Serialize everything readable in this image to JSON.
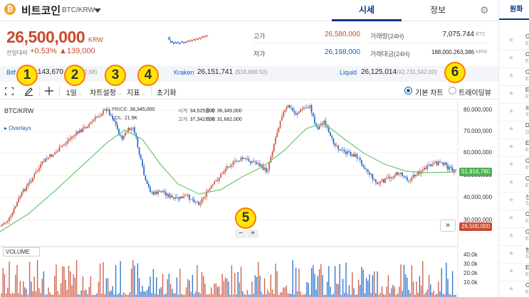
{
  "header": {
    "coin_icon_glyph": "₿",
    "coin_name": "비트코인",
    "pair": "BTC/KRW",
    "tabs": [
      "시세",
      "정보"
    ]
  },
  "summary": {
    "price": "26,500,000",
    "unit": "KRW",
    "change_label": "전일대비",
    "change_pct": "+0.53%",
    "change_abs": "▲139,000",
    "high_label": "고가",
    "high_value": "26,580,000",
    "low_label": "저가",
    "low_value": "26,198,000",
    "volume_label": "거래량(24H)",
    "volume_value": "7,075.744",
    "volume_unit": "BTC",
    "amount_label": "거래대금(24H)",
    "amount_value": "188,000,263,386",
    "amount_unit": "KRW"
  },
  "exchanges": {
    "bitfinex_name": "Bitf",
    "bitfinex_price": "26,143,670",
    "bitfinex_usd": "2.68)",
    "kraken_name": "Kraken",
    "kraken_price": "26,151,741",
    "kraken_usd": "($18,868.50)",
    "liquid_name": "Liquid",
    "liquid_price": "26,125,014",
    "liquid_usd": "(¥2,731,542.00)"
  },
  "toolbar": {
    "fullscreen_icon": "fullscreen-icon",
    "draw_icon": "pencil-icon",
    "crosshair_icon": "crosshair-icon",
    "interval": "1일",
    "chart_settings": "차트설정",
    "indicators": "지표",
    "reset": "초기화",
    "basic_chart": "기본 차트",
    "tradingview": "트레이딩뷰"
  },
  "chart": {
    "symbol": "BTC/KRW",
    "overlays": "Overlays",
    "ohlc": {
      "price_label": "PRICE:",
      "price": "36,345,000",
      "vol_label": "VOL:",
      "vol": "21.9K",
      "open_label": "시가:",
      "open": "34,525,000",
      "high_label": "고가:",
      "high": "37,342,000",
      "close_label": "종가:",
      "close": "36,345,000",
      "low_label": "저가:",
      "low": "31,662,000"
    },
    "price_axis": [
      "80,000,000",
      "70,000,000",
      "60,000,000",
      "50,000,000",
      "40,000,000",
      "30,000,000"
    ],
    "ma_tag": "51,916,780",
    "price_tag": "26,500,000",
    "volume_label": "VOLUME",
    "volume_axis": [
      "40.0k",
      "30.0k",
      "20.0k",
      "10.0k"
    ],
    "zoom_minus": "−",
    "zoom_plus": "+",
    "expand": "»",
    "colors": {
      "up": "#c84a31",
      "down": "#1261c4",
      "ma": "#6cc86c"
    }
  },
  "sidebar": {
    "tab": "원화",
    "rows": [
      {
        "ch": "C",
        "sub": "E"
      },
      {
        "ch": "C",
        "sub": "E"
      },
      {
        "ch": "C",
        "sub": "E"
      },
      {
        "ch": "E",
        "sub": "E"
      },
      {
        "ch": "리",
        "sub": "X"
      },
      {
        "ch": "D",
        "sub": "D"
      },
      {
        "ch": "E",
        "sub": "E"
      },
      {
        "ch": "C",
        "sub": "E"
      },
      {
        "ch": "C",
        "sub": "E"
      },
      {
        "ch": "선",
        "sub": "S"
      },
      {
        "ch": "C",
        "sub": "E"
      },
      {
        "ch": "C",
        "sub": "E"
      },
      {
        "ch": "한",
        "sub": "S"
      },
      {
        "ch": "E",
        "sub": "E"
      },
      {
        "ch": "C",
        "sub": "E"
      }
    ]
  },
  "markers": [
    "1",
    "2",
    "3",
    "4",
    "5",
    "6"
  ]
}
